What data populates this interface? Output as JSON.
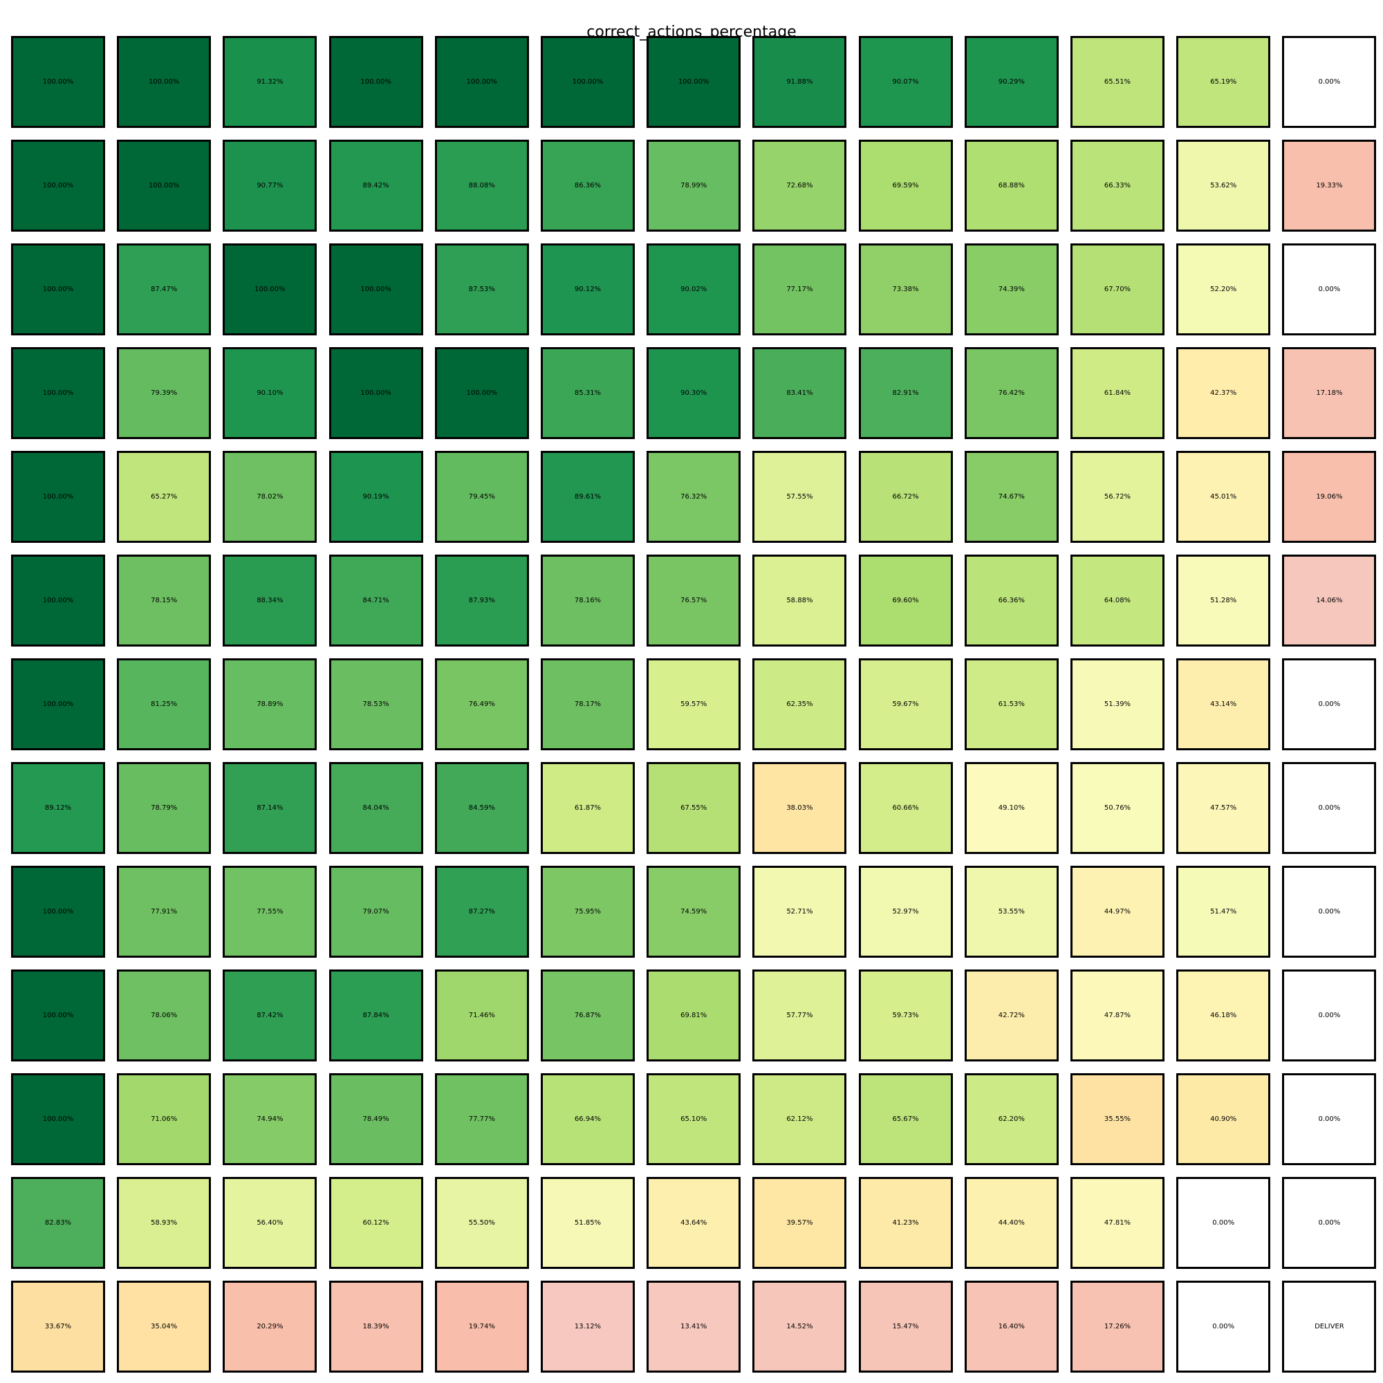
{
  "chart_data": {
    "type": "heatmap",
    "title": "correct_actions_percentage",
    "colormap": "RdYlGn",
    "rows": [
      [
        "100.00%",
        "100.00%",
        "91.32%",
        "100.00%",
        "100.00%",
        "100.00%",
        "100.00%",
        "91.88%",
        "90.07%",
        "90.29%",
        "65.51%",
        "65.19%",
        "0.00%"
      ],
      [
        "100.00%",
        "100.00%",
        "90.77%",
        "89.42%",
        "88.08%",
        "86.36%",
        "78.99%",
        "72.68%",
        "69.59%",
        "68.88%",
        "66.33%",
        "53.62%",
        "19.33%"
      ],
      [
        "100.00%",
        "87.47%",
        "100.00%",
        "100.00%",
        "87.53%",
        "90.12%",
        "90.02%",
        "77.17%",
        "73.38%",
        "74.39%",
        "67.70%",
        "52.20%",
        "0.00%"
      ],
      [
        "100.00%",
        "79.39%",
        "90.10%",
        "100.00%",
        "100.00%",
        "85.31%",
        "90.30%",
        "83.41%",
        "82.91%",
        "76.42%",
        "61.84%",
        "42.37%",
        "17.18%"
      ],
      [
        "100.00%",
        "65.27%",
        "78.02%",
        "90.19%",
        "79.45%",
        "89.61%",
        "76.32%",
        "57.55%",
        "66.72%",
        "74.67%",
        "56.72%",
        "45.01%",
        "19.06%"
      ],
      [
        "100.00%",
        "78.15%",
        "88.34%",
        "84.71%",
        "87.93%",
        "78.16%",
        "76.57%",
        "58.88%",
        "69.60%",
        "66.36%",
        "64.08%",
        "51.28%",
        "14.06%"
      ],
      [
        "100.00%",
        "81.25%",
        "78.89%",
        "78.53%",
        "76.49%",
        "78.17%",
        "59.57%",
        "62.35%",
        "59.67%",
        "61.53%",
        "51.39%",
        "43.14%",
        "0.00%"
      ],
      [
        "89.12%",
        "78.79%",
        "87.14%",
        "84.04%",
        "84.59%",
        "61.87%",
        "67.55%",
        "38.03%",
        "60.66%",
        "49.10%",
        "50.76%",
        "47.57%",
        "0.00%"
      ],
      [
        "100.00%",
        "77.91%",
        "77.55%",
        "79.07%",
        "87.27%",
        "75.95%",
        "74.59%",
        "52.71%",
        "52.97%",
        "53.55%",
        "44.97%",
        "51.47%",
        "0.00%"
      ],
      [
        "100.00%",
        "78.06%",
        "87.42%",
        "87.84%",
        "71.46%",
        "76.87%",
        "69.81%",
        "57.77%",
        "59.73%",
        "42.72%",
        "47.87%",
        "46.18%",
        "0.00%"
      ],
      [
        "100.00%",
        "71.06%",
        "74.94%",
        "78.49%",
        "77.77%",
        "66.94%",
        "65.10%",
        "62.12%",
        "65.67%",
        "62.20%",
        "35.55%",
        "40.90%",
        "0.00%"
      ],
      [
        "82.83%",
        "58.93%",
        "56.40%",
        "60.12%",
        "55.50%",
        "51.85%",
        "43.64%",
        "39.57%",
        "41.23%",
        "44.40%",
        "47.81%",
        "0.00%",
        "0.00%"
      ],
      [
        "33.67%",
        "35.04%",
        "20.29%",
        "18.39%",
        "19.74%",
        "13.12%",
        "13.41%",
        "14.52%",
        "15.47%",
        "16.40%",
        "17.26%",
        "0.00%",
        "DELIVER"
      ]
    ]
  }
}
